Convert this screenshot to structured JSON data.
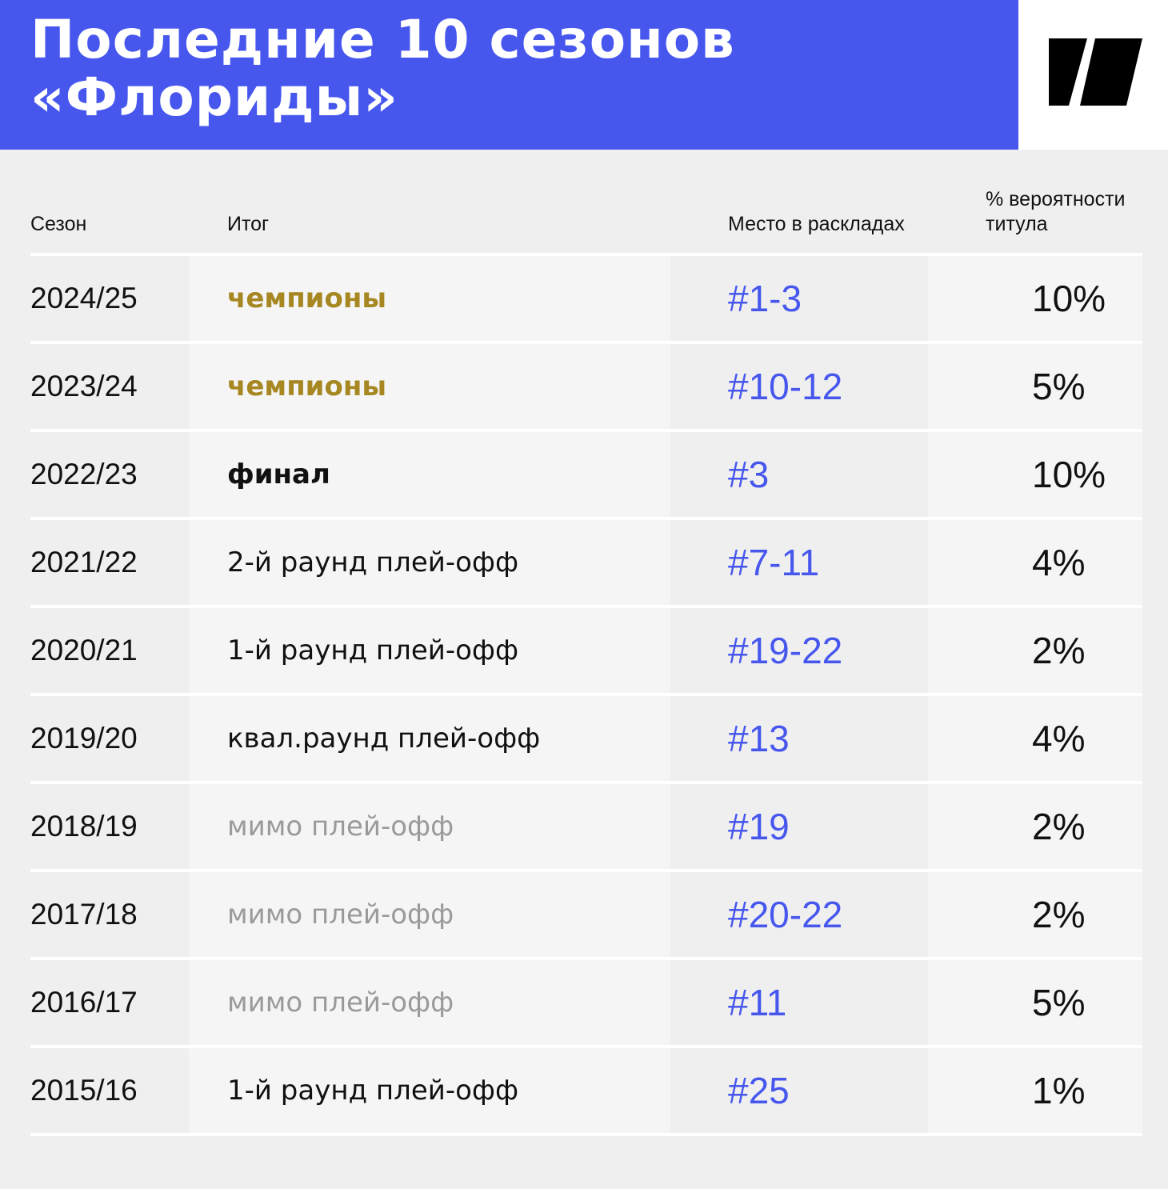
{
  "title": {
    "line1": "Последние 10 сезонов",
    "line2": "«Флориды»"
  },
  "logo": {
    "icon": "brand-logo-icon"
  },
  "table": {
    "headers": {
      "season": "Сезон",
      "result": "Итог",
      "rank": "Место в раскладах",
      "probability_line1": "% вероятности",
      "probability_line2": "титула"
    },
    "rows": [
      {
        "season": "2024/25",
        "result": "чемпионы",
        "rank": "#1-3",
        "probability": "10%"
      },
      {
        "season": "2023/24",
        "result": "чемпионы",
        "rank": "#10-12",
        "probability": "5%"
      },
      {
        "season": "2022/23",
        "result": "финал",
        "rank": "#3",
        "probability": "10%"
      },
      {
        "season": "2021/22",
        "result": "2-й раунд плей-офф",
        "rank": "#7-11",
        "probability": "4%"
      },
      {
        "season": "2020/21",
        "result": "1-й раунд плей-офф",
        "rank": "#19-22",
        "probability": "2%"
      },
      {
        "season": "2019/20",
        "result": "квал.раунд плей-офф",
        "rank": "#13",
        "probability": "4%"
      },
      {
        "season": "2018/19",
        "result": "мимо плей-офф",
        "rank": "#19",
        "probability": "2%"
      },
      {
        "season": "2017/18",
        "result": "мимо плей-офф",
        "rank": "#20-22",
        "probability": "2%"
      },
      {
        "season": "2016/17",
        "result": "мимо плей-офф",
        "rank": "#11",
        "probability": "5%"
      },
      {
        "season": "2015/16",
        "result": "1-й раунд плей-офф",
        "rank": "#25",
        "probability": "1%"
      }
    ]
  },
  "colors": {
    "header_background": "#4757ee",
    "page_background": "#efefef",
    "champion_text": "#a68722",
    "rank_text": "#4757ee",
    "missed_playoffs_text": "#9a9a9a"
  }
}
